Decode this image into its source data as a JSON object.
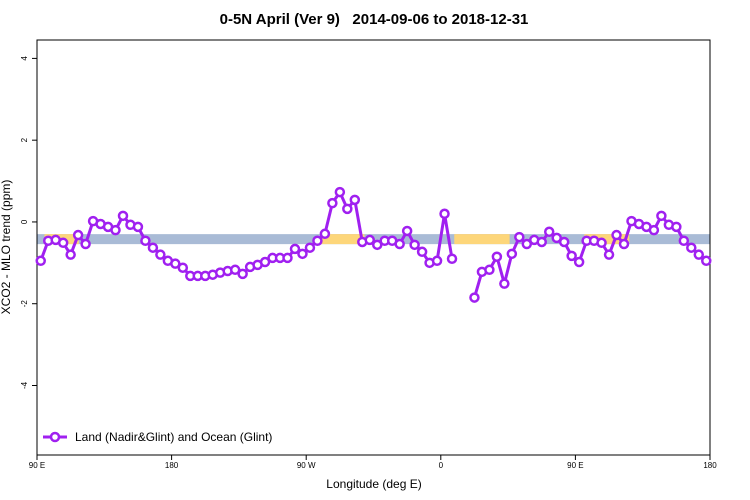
{
  "chart_data": {
    "type": "line",
    "title": "0-5N April (Ver 9)   2014-09-06 to 2018-12-31",
    "x_label": "Longitude (deg E)",
    "y_label": "XCO2 - MLO trend (ppm)",
    "xlim": [
      90,
      540
    ],
    "ylim": [
      -5.7,
      4.45
    ],
    "xticks": [
      {
        "value": 90,
        "label": "90 E"
      },
      180,
      {
        "value": 270,
        "label": "90 W"
      },
      {
        "value": 360,
        "label": "0"
      },
      {
        "value": 450,
        "label": "90 E"
      },
      {
        "value": 540,
        "label": "180"
      }
    ],
    "yticks": [
      4,
      2,
      0,
      -2,
      -4
    ],
    "legend": "bottom-left",
    "band": {
      "value": -0.42,
      "color": "#a9bbd6",
      "highlight_color": "#fdd67a",
      "highlights": [
        [
          95,
          118
        ],
        [
          280,
          309
        ],
        [
          369,
          406
        ],
        [
          456,
          486
        ]
      ]
    },
    "x": [
      92.5,
      97.5,
      102.5,
      107.5,
      112.5,
      117.5,
      122.5,
      127.5,
      132.5,
      137.5,
      142.5,
      147.5,
      152.5,
      157.5,
      162.5,
      167.5,
      172.5,
      177.5,
      182.5,
      187.5,
      192.5,
      197.5,
      202.5,
      207.5,
      212.5,
      217.5,
      222.5,
      227.5,
      232.5,
      237.5,
      242.5,
      247.5,
      252.5,
      257.5,
      262.5,
      267.5,
      272.5,
      277.5,
      282.5,
      287.5,
      292.5,
      297.5,
      302.5,
      307.5,
      312.5,
      317.5,
      322.5,
      327.5,
      332.5,
      337.5,
      342.5,
      347.5,
      352.5,
      357.5,
      362.5,
      367.5,
      372.5,
      377.5,
      382.5,
      387.5,
      392.5,
      397.5,
      402.5,
      407.5,
      412.5,
      417.5,
      422.5,
      427.5,
      432.5,
      437.5,
      442.5,
      447.5,
      452.5,
      457.5,
      462.5,
      467.5,
      472.5,
      477.5,
      482.5,
      487.5,
      492.5,
      497.5,
      502.5,
      507.5,
      512.5,
      517.5,
      522.5,
      527.5,
      532.5,
      537.5
    ],
    "series": [
      {
        "name": "Land (Nadir&Glint) and Ocean (Glint)",
        "color": "#a020f0",
        "values": [
          -0.95,
          -0.46,
          -0.44,
          -0.51,
          -0.8,
          -0.32,
          -0.54,
          0.02,
          -0.05,
          -0.12,
          -0.2,
          0.15,
          -0.07,
          -0.12,
          -0.46,
          -0.63,
          -0.8,
          -0.95,
          -1.02,
          -1.12,
          -1.32,
          -1.32,
          -1.32,
          -1.29,
          -1.24,
          -1.2,
          -1.17,
          -1.27,
          -1.1,
          -1.05,
          -0.98,
          -0.88,
          -0.88,
          -0.88,
          -0.66,
          -0.78,
          -0.63,
          -0.46,
          -0.29,
          0.46,
          0.73,
          0.32,
          0.54,
          -0.49,
          -0.44,
          -0.56,
          -0.46,
          -0.46,
          -0.54,
          -0.22,
          -0.56,
          -0.73,
          -1.0,
          -0.95,
          0.2,
          -0.9,
          null,
          null,
          -1.85,
          -1.22,
          -1.17,
          -0.85,
          -1.51,
          -0.78,
          -0.37,
          -0.54,
          -0.44,
          -0.49,
          -0.24,
          -0.39,
          -0.49,
          -0.83,
          -0.98,
          -0.46,
          -0.46,
          -0.51,
          -0.8,
          -0.32,
          -0.54,
          0.02,
          -0.05,
          -0.12,
          -0.2,
          0.15,
          -0.07,
          -0.12,
          -0.46,
          -0.63,
          -0.8,
          -0.95
        ]
      }
    ]
  }
}
